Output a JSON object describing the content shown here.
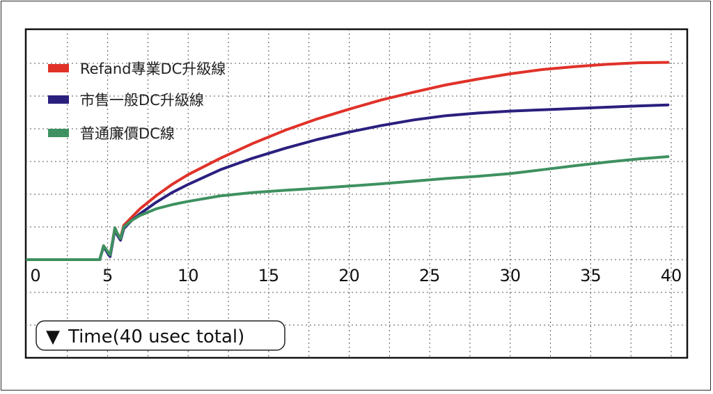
{
  "chart_data": {
    "type": "line",
    "xlabel": "Time(40 usec total)",
    "xlabel_marker": "▼",
    "xticks": [
      "0",
      "5",
      "10",
      "15",
      "20",
      "25",
      "30",
      "35",
      "40"
    ],
    "xlim": [
      0,
      40
    ],
    "grid": true,
    "legend_position": "top-left",
    "series": [
      {
        "name": "Refand專業DC升級線",
        "color": "#e03229",
        "x": [
          0,
          4.5,
          5.0,
          5.3,
          5.6,
          6.0,
          6.5,
          7,
          8,
          9,
          10,
          12,
          14,
          16,
          18,
          20,
          22,
          24,
          26,
          28,
          30,
          32,
          34,
          36,
          38,
          39.8
        ],
        "y": [
          0,
          0,
          0.25,
          0.55,
          0.8,
          1.05,
          1.3,
          1.55,
          1.95,
          2.3,
          2.6,
          3.1,
          3.55,
          3.95,
          4.3,
          4.6,
          4.88,
          5.12,
          5.34,
          5.52,
          5.68,
          5.81,
          5.9,
          5.97,
          6.02,
          6.03
        ]
      },
      {
        "name": "市售一般DC升級線",
        "color": "#2b1f7e",
        "x": [
          0,
          4.5,
          5.0,
          5.3,
          5.6,
          6.0,
          6.5,
          7,
          8,
          9,
          10,
          12,
          14,
          16,
          18,
          20,
          22,
          24,
          26,
          28,
          30,
          32,
          34,
          36,
          38,
          39.8
        ],
        "y": [
          0,
          0,
          0.2,
          0.5,
          0.75,
          0.95,
          1.2,
          1.4,
          1.75,
          2.05,
          2.3,
          2.75,
          3.1,
          3.4,
          3.67,
          3.9,
          4.1,
          4.27,
          4.4,
          4.48,
          4.54,
          4.58,
          4.62,
          4.66,
          4.7,
          4.73
        ]
      },
      {
        "name": "普通廉價DC線",
        "color": "#3e9160",
        "x": [
          0,
          4.5,
          5.0,
          5.3,
          5.6,
          6.0,
          6.5,
          7,
          8,
          9,
          10,
          12,
          14,
          16,
          18,
          20,
          22,
          24,
          26,
          28,
          30,
          32,
          34,
          36,
          38,
          39.8
        ],
        "y": [
          0,
          0,
          0.25,
          0.55,
          0.8,
          1.0,
          1.2,
          1.35,
          1.55,
          1.68,
          1.78,
          1.95,
          2.05,
          2.12,
          2.18,
          2.25,
          2.32,
          2.4,
          2.48,
          2.55,
          2.63,
          2.75,
          2.87,
          2.98,
          3.08,
          3.15
        ]
      }
    ]
  }
}
